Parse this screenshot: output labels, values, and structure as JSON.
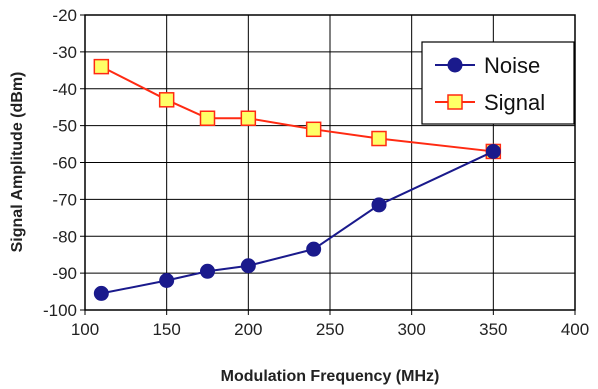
{
  "chart_data": {
    "type": "line",
    "xlabel": "Modulation Frequency (MHz)",
    "ylabel": "Signal Amplitude (dBm)",
    "xlim": [
      100,
      400
    ],
    "ylim": [
      -100,
      -20
    ],
    "xticks": [
      100,
      150,
      200,
      250,
      300,
      350,
      400
    ],
    "yticks": [
      -20,
      -30,
      -40,
      -50,
      -60,
      -70,
      -80,
      -90,
      -100
    ],
    "grid": true,
    "legend_position": "top-right",
    "series": [
      {
        "name": "Noise",
        "marker": "circle",
        "color": "#1a1a8c",
        "marker_fill": "#1a1a8c",
        "x": [
          110,
          150,
          175,
          200,
          240,
          280,
          350
        ],
        "y": [
          -95.5,
          -92,
          -89.5,
          -88,
          -83.5,
          -71.5,
          -57
        ]
      },
      {
        "name": "Signal",
        "marker": "square",
        "color": "#ff2a12",
        "marker_fill": "#ffff66",
        "x": [
          110,
          150,
          175,
          200,
          240,
          280,
          350
        ],
        "y": [
          -34,
          -43,
          -48,
          -48,
          -51,
          -53.5,
          -57
        ]
      }
    ]
  }
}
